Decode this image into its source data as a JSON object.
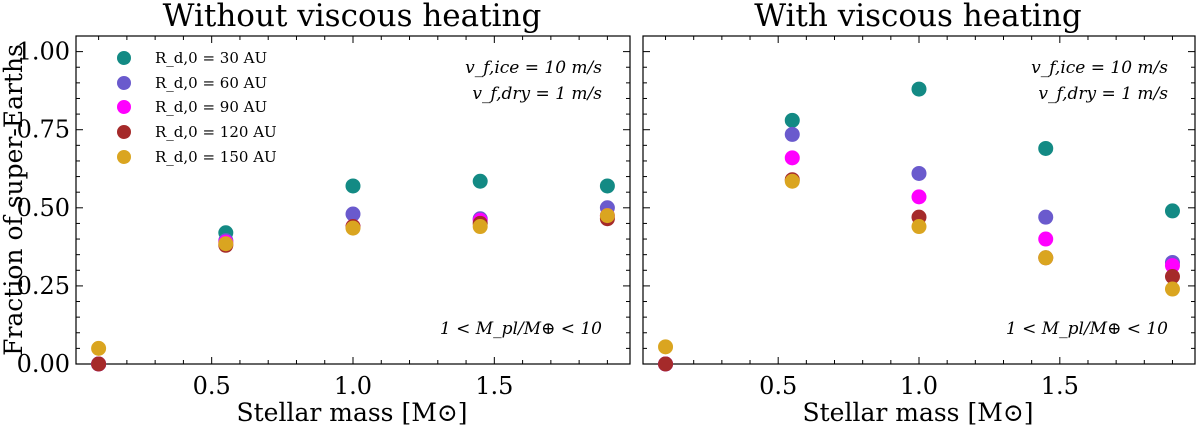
{
  "chart_data": [
    {
      "type": "scatter",
      "title": "Without viscous heating",
      "xlabel": "Stellar mass [M⊙]",
      "ylabel": "Fraction of super-Earths",
      "xlim": [
        0.02,
        1.98
      ],
      "ylim": [
        0.0,
        1.05
      ],
      "xticks": [
        "0.5",
        "1.0",
        "1.5"
      ],
      "yticks": [
        "0.00",
        "0.25",
        "0.50",
        "0.75",
        "1.00"
      ],
      "annotation_vf_ice": "v_f,ice = 10 m/s",
      "annotation_vf_dry": "v_f,dry = 1 m/s",
      "annotation_mass": "1 < M_pl/M⊕ < 10",
      "legend_position": "upper left",
      "x": [
        0.1,
        0.55,
        1.0,
        1.45,
        1.9
      ],
      "series": [
        {
          "name": "R_d,0 = 30 AU",
          "color": "#138a84",
          "values": [
            0.0,
            0.42,
            0.57,
            0.585,
            0.57
          ]
        },
        {
          "name": "R_d,0 = 60 AU",
          "color": "#6a5acd",
          "values": [
            0.0,
            0.395,
            0.48,
            0.465,
            0.5
          ]
        },
        {
          "name": "R_d,0 = 90 AU",
          "color": "#ff00ff",
          "values": [
            0.0,
            0.39,
            0.44,
            0.46,
            0.475
          ]
        },
        {
          "name": "R_d,0 = 120 AU",
          "color": "#a52a2a",
          "values": [
            0.0,
            0.38,
            0.44,
            0.45,
            0.465
          ]
        },
        {
          "name": "R_d,0 = 150 AU",
          "color": "#daa520",
          "values": [
            0.05,
            0.385,
            0.435,
            0.44,
            0.475
          ]
        }
      ]
    },
    {
      "type": "scatter",
      "title": "With viscous heating",
      "xlabel": "Stellar mass [M⊙]",
      "ylabel": "",
      "xlim": [
        0.02,
        1.98
      ],
      "ylim": [
        0.0,
        1.05
      ],
      "xticks": [
        "0.5",
        "1.0",
        "1.5"
      ],
      "yticks": [],
      "annotation_vf_ice": "v_f,ice = 10 m/s",
      "annotation_vf_dry": "v_f,dry = 1 m/s",
      "annotation_mass": "1 < M_pl/M⊕ < 10",
      "x": [
        0.1,
        0.55,
        1.0,
        1.45,
        1.9
      ],
      "series": [
        {
          "name": "R_d,0 = 30 AU",
          "color": "#138a84",
          "values": [
            0.0,
            0.78,
            0.88,
            0.69,
            0.49
          ]
        },
        {
          "name": "R_d,0 = 60 AU",
          "color": "#6a5acd",
          "values": [
            0.0,
            0.735,
            0.61,
            0.47,
            0.325
          ]
        },
        {
          "name": "R_d,0 = 90 AU",
          "color": "#ff00ff",
          "values": [
            0.0,
            0.66,
            0.535,
            0.4,
            0.315
          ]
        },
        {
          "name": "R_d,0 = 120 AU",
          "color": "#a52a2a",
          "values": [
            0.0,
            0.59,
            0.47,
            0.34,
            0.28
          ]
        },
        {
          "name": "R_d,0 = 150 AU",
          "color": "#daa520",
          "values": [
            0.055,
            0.585,
            0.44,
            0.34,
            0.24
          ]
        }
      ]
    }
  ]
}
